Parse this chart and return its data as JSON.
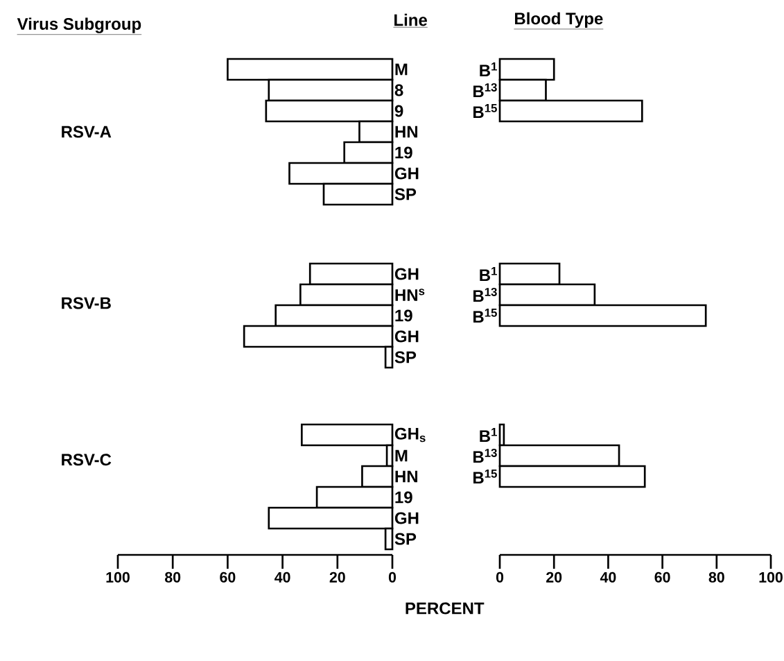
{
  "chart_data": [
    {
      "type": "bar",
      "orientation": "horizontal",
      "title": "Line",
      "ylabel": "RSV-A",
      "annotations": [
        "Virus Subgroup"
      ],
      "categories": [
        "M",
        "8",
        "9",
        "HN",
        "19",
        "GH",
        "SP"
      ],
      "values": [
        60,
        45,
        46,
        12,
        17.5,
        37.5,
        25
      ],
      "color": "#ffffff",
      "xlim": [
        100,
        0
      ],
      "tick_labels": "y"
    },
    {
      "type": "bar",
      "orientation": "horizontal",
      "title": "Blood Type",
      "categories": [
        "B$^{1}$",
        "B$^{13}$",
        "B$^{15}$"
      ],
      "values": [
        20,
        17,
        52.5
      ],
      "color": "#ffffff",
      "xlim": [
        0,
        100
      ],
      "tick_labels": "y"
    },
    {
      "type": "bar",
      "orientation": "horizontal",
      "ylabel": "RSV-B",
      "categories": [
        "GH",
        "HN$^{s}$",
        "19",
        "GH",
        "SP"
      ],
      "values": [
        30,
        33.5,
        42.5,
        54,
        2.5
      ],
      "color": "#ffffff",
      "xlim": [
        100,
        0
      ],
      "tick_labels": "y"
    },
    {
      "type": "bar",
      "orientation": "horizontal",
      "categories": [
        "B$^{1}$",
        "B$^{13}$",
        "B$^{15}$"
      ],
      "values": [
        22,
        35,
        76
      ],
      "color": "#ffffff",
      "xlim": [
        0,
        100
      ],
      "tick_labels": "y"
    },
    {
      "type": "bar",
      "orientation": "horizontal",
      "ylabel": "RSV-C",
      "xlabel": "PERCENT",
      "categories": [
        "GH$_{s}$",
        "M",
        "HN",
        "19",
        "GH",
        "SP"
      ],
      "values": [
        33,
        2,
        11,
        27.5,
        45,
        2.5
      ],
      "color": "#ffffff",
      "xlim": [
        100,
        0
      ],
      "xticks": [
        100,
        80,
        60,
        40,
        20,
        0
      ]
    },
    {
      "type": "bar",
      "orientation": "horizontal",
      "categories": [
        "B$^{1}$",
        "B$^{13}$",
        "B$^{15}$"
      ],
      "values": [
        1.5,
        44,
        53.5
      ],
      "color": "#ffffff",
      "xlim": [
        0,
        100
      ],
      "xticks": [
        0,
        20,
        40,
        60,
        80,
        100
      ]
    }
  ]
}
